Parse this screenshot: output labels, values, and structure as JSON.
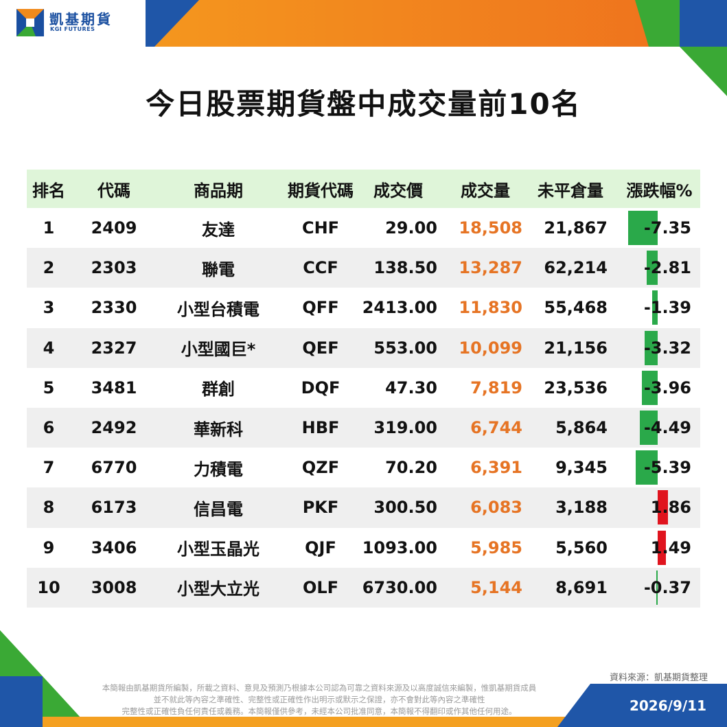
{
  "brand": {
    "name_cn": "凱基期貨",
    "name_en": "KGI FUTURES"
  },
  "title": "今日股票期貨盤中成交量前10名",
  "table": {
    "headers": {
      "rank": "排名",
      "code": "代碼",
      "name": "商品期",
      "futures_code": "期貨代碼",
      "price": "成交價",
      "volume": "成交量",
      "open_interest": "未平倉量",
      "change": "漲跌幅%"
    },
    "rows": [
      {
        "rank": "1",
        "code": "2409",
        "name": "友達",
        "futures_code": "CHF",
        "price": "29.00",
        "volume": "18,508",
        "open_interest": "21,867",
        "change": "-7.35",
        "change_value": -7.35
      },
      {
        "rank": "2",
        "code": "2303",
        "name": "聯電",
        "futures_code": "CCF",
        "price": "138.50",
        "volume": "13,287",
        "open_interest": "62,214",
        "change": "-2.81",
        "change_value": -2.81
      },
      {
        "rank": "3",
        "code": "2330",
        "name": "小型台積電",
        "futures_code": "QFF",
        "price": "2413.00",
        "volume": "11,830",
        "open_interest": "55,468",
        "change": "-1.39",
        "change_value": -1.39
      },
      {
        "rank": "4",
        "code": "2327",
        "name": "小型國巨*",
        "futures_code": "QEF",
        "price": "553.00",
        "volume": "10,099",
        "open_interest": "21,156",
        "change": "-3.32",
        "change_value": -3.32
      },
      {
        "rank": "5",
        "code": "3481",
        "name": "群創",
        "futures_code": "DQF",
        "price": "47.30",
        "volume": "7,819",
        "open_interest": "23,536",
        "change": "-3.96",
        "change_value": -3.96
      },
      {
        "rank": "6",
        "code": "2492",
        "name": "華新科",
        "futures_code": "HBF",
        "price": "319.00",
        "volume": "6,744",
        "open_interest": "5,864",
        "change": "-4.49",
        "change_value": -4.49
      },
      {
        "rank": "7",
        "code": "6770",
        "name": "力積電",
        "futures_code": "QZF",
        "price": "70.20",
        "volume": "6,391",
        "open_interest": "9,345",
        "change": "-5.39",
        "change_value": -5.39
      },
      {
        "rank": "8",
        "code": "6173",
        "name": "信昌電",
        "futures_code": "PKF",
        "price": "300.50",
        "volume": "6,083",
        "open_interest": "3,188",
        "change": "1.86",
        "change_value": 1.86
      },
      {
        "rank": "9",
        "code": "3406",
        "name": "小型玉晶光",
        "futures_code": "QJF",
        "price": "1093.00",
        "volume": "5,985",
        "open_interest": "5,560",
        "change": "1.49",
        "change_value": 1.49
      },
      {
        "rank": "10",
        "code": "3008",
        "name": "小型大立光",
        "futures_code": "OLF",
        "price": "6730.00",
        "volume": "5,144",
        "open_interest": "8,691",
        "change": "-0.37",
        "change_value": -0.37
      }
    ]
  },
  "colors": {
    "negative_bar": "#2aa94a",
    "positive_bar": "#e0141e",
    "volume_text": "#e67424",
    "header_bg": "#dff5d9",
    "brand_blue": "#1a4fa0",
    "brand_orange": "#f08a1c",
    "brand_green": "#3aa935"
  },
  "footer": {
    "source": "資料來源：凱基期貨整理",
    "disclaimer_lines": [
      "本簡報由凱基期貨所編製，所載之資料、意見及預測乃根據本公司認為可靠之資料來源及以高度誠信來編製，惟凱基期貨成員",
      "並不就此等內容之準確性、完整性或正確性作出明示或默示之保證，亦不會對此等內容之準確性",
      "完整性或正確性負任何責任或義務。本簡報僅供參考，未經本公司批准同意，本簡報不得翻印或作其他任何用途。"
    ],
    "date": "2026/9/11"
  }
}
